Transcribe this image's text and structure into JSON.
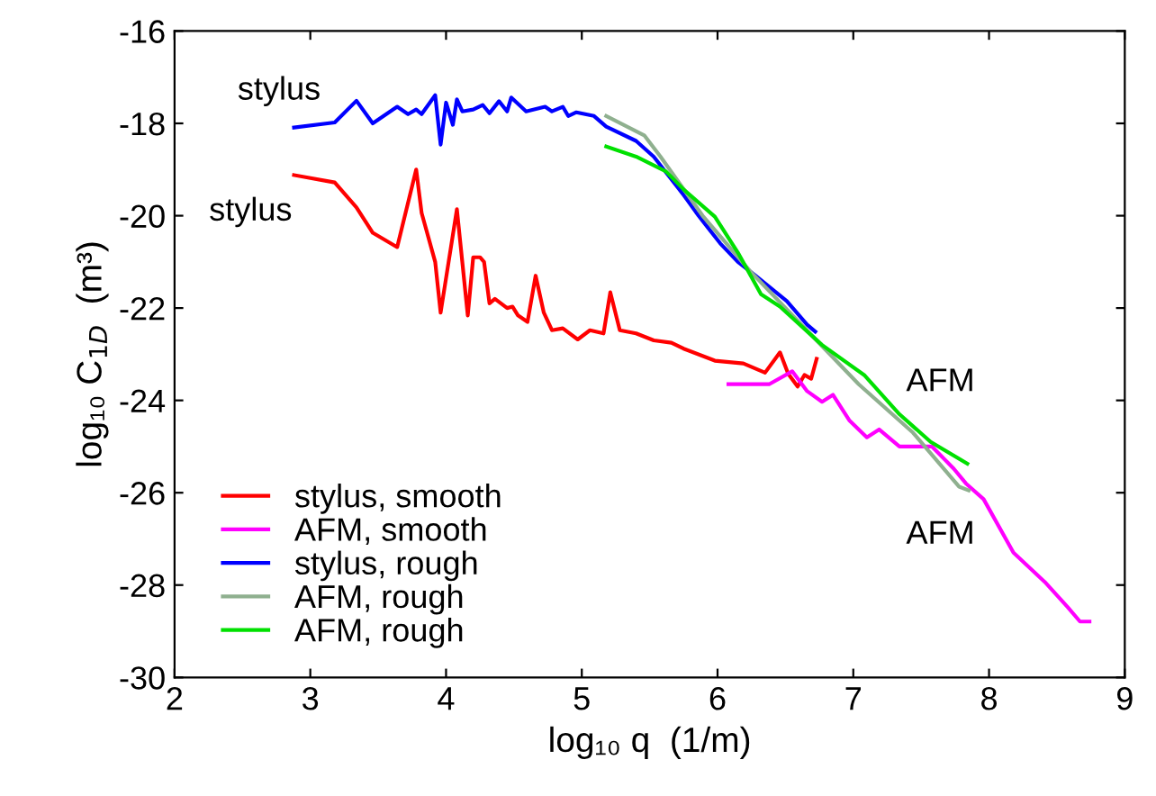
{
  "chart_data": {
    "type": "line",
    "xlabel": "log₁₀ q  (1/m)",
    "ylabel": "log₁₀ C$_{1D}$  (m³)",
    "xlim": [
      2,
      9
    ],
    "xticks": [
      2,
      3,
      4,
      5,
      6,
      7,
      8,
      9
    ],
    "ylim": [
      -30,
      -16
    ],
    "yticks": [
      -30,
      -28,
      -26,
      -24,
      -22,
      -20,
      -18,
      -16
    ],
    "grid": false,
    "legend": "bottom left",
    "marker": "none",
    "line_style": "solid",
    "annotations": [
      "stylus",
      "stylus",
      "AFM",
      "AFM"
    ],
    "series": [
      {
        "name": "stylus, smooth",
        "color": "#ff0000",
        "x": [
          2.88,
          3.18,
          3.34,
          3.46,
          3.64,
          3.78,
          3.82,
          3.92,
          3.96,
          4.08,
          4.16,
          4.2,
          4.25,
          4.28,
          4.32,
          4.36,
          4.45,
          4.49,
          4.53,
          4.6,
          4.66,
          4.72,
          4.78,
          4.86,
          4.97,
          5.06,
          5.16,
          5.21,
          5.28,
          5.4,
          5.53,
          5.66,
          5.75,
          5.98,
          6.19,
          6.35,
          6.46,
          6.52,
          6.59,
          6.64,
          6.69,
          6.73
        ],
        "values": [
          -19.12,
          -19.28,
          -19.82,
          -20.37,
          -20.68,
          -19.0,
          -19.94,
          -21.0,
          -22.1,
          -19.86,
          -22.16,
          -20.9,
          -20.9,
          -21.0,
          -21.9,
          -21.8,
          -22.0,
          -21.97,
          -22.16,
          -22.3,
          -21.3,
          -22.1,
          -22.48,
          -22.44,
          -22.68,
          -22.48,
          -22.55,
          -21.66,
          -22.48,
          -22.55,
          -22.7,
          -22.75,
          -22.88,
          -23.14,
          -23.2,
          -23.4,
          -22.96,
          -23.42,
          -23.7,
          -23.45,
          -23.53,
          -23.1
        ]
      },
      {
        "name": "AFM, smooth",
        "color": "#ff00ff",
        "x": [
          6.08,
          6.38,
          6.55,
          6.66,
          6.77,
          6.85,
          6.97,
          7.1,
          7.19,
          7.34,
          7.45,
          7.58,
          7.74,
          7.83,
          7.96,
          8.18,
          8.41,
          8.58,
          8.67,
          8.74
        ],
        "values": [
          -23.65,
          -23.65,
          -23.37,
          -23.8,
          -24.03,
          -23.88,
          -24.43,
          -24.8,
          -24.63,
          -25.0,
          -25.0,
          -25.0,
          -25.48,
          -25.8,
          -26.14,
          -27.3,
          -27.93,
          -28.48,
          -28.79,
          -28.79
        ]
      },
      {
        "name": "stylus, rough",
        "color": "#0000ff",
        "x": [
          2.88,
          3.18,
          3.34,
          3.46,
          3.64,
          3.72,
          3.78,
          3.82,
          3.92,
          3.96,
          4.0,
          4.05,
          4.08,
          4.12,
          4.2,
          4.27,
          4.32,
          4.39,
          4.45,
          4.48,
          4.59,
          4.73,
          4.78,
          4.86,
          4.9,
          4.96,
          5.09,
          5.18,
          5.4,
          5.53,
          5.75,
          5.86,
          6.02,
          6.15,
          6.28,
          6.51,
          6.66,
          6.72
        ],
        "values": [
          -18.09,
          -17.98,
          -17.51,
          -18.0,
          -17.64,
          -17.8,
          -17.7,
          -17.8,
          -17.39,
          -18.46,
          -17.55,
          -18.03,
          -17.48,
          -17.74,
          -17.7,
          -17.6,
          -17.78,
          -17.52,
          -17.74,
          -17.44,
          -17.74,
          -17.64,
          -17.74,
          -17.64,
          -17.84,
          -17.76,
          -17.84,
          -18.07,
          -18.38,
          -18.72,
          -19.55,
          -20.0,
          -20.6,
          -21.0,
          -21.3,
          -21.85,
          -22.36,
          -22.51
        ]
      },
      {
        "name": "AFM, rough",
        "color": "#8fb08f",
        "x": [
          5.18,
          5.46,
          5.58,
          5.89,
          6.24,
          6.68,
          7.04,
          7.44,
          7.78,
          7.85
        ],
        "values": [
          -17.84,
          -18.26,
          -18.72,
          -20.0,
          -21.2,
          -22.55,
          -23.65,
          -24.7,
          -25.87,
          -25.95
        ]
      },
      {
        "name": "AFM, rough",
        "color": "#00e000",
        "x": [
          5.18,
          5.4,
          5.62,
          5.75,
          5.98,
          6.15,
          6.32,
          6.46,
          6.77,
          7.08,
          7.34,
          7.57,
          7.84
        ],
        "values": [
          -18.5,
          -18.72,
          -19.04,
          -19.43,
          -20.02,
          -20.8,
          -21.7,
          -21.97,
          -22.8,
          -23.45,
          -24.3,
          -24.9,
          -25.37
        ]
      }
    ]
  }
}
